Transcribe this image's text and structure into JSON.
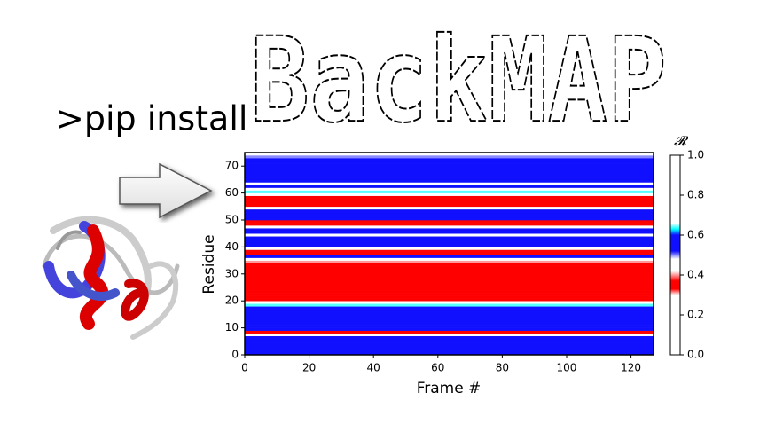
{
  "header": {
    "command": ">pip install",
    "logo": "BackMAP"
  },
  "chart_data": {
    "type": "heatmap",
    "xlabel": "Frame #",
    "ylabel": "Residue",
    "colorbar_label": "𝓡",
    "xlim": [
      0,
      127
    ],
    "xticks": [
      0,
      20,
      40,
      60,
      80,
      100,
      120
    ],
    "ylim": [
      0,
      75
    ],
    "yticks": [
      0,
      10,
      20,
      30,
      40,
      50,
      60,
      70
    ],
    "clim": [
      0,
      1
    ],
    "cticks": [
      {
        "value": 0,
        "label": "0.0"
      },
      {
        "value": 0.2,
        "label": "0.2"
      },
      {
        "value": 0.4,
        "label": "0.4"
      },
      {
        "value": 0.6,
        "label": "0.6"
      },
      {
        "value": 0.8,
        "label": "0.8"
      },
      {
        "value": 1,
        "label": "1.0"
      }
    ],
    "colormap": [
      [
        0,
        "#ffffff"
      ],
      [
        0.3,
        "#ffffff"
      ],
      [
        0.33,
        "#ff0000"
      ],
      [
        0.37,
        "#ff0000"
      ],
      [
        0.42,
        "#ffffff"
      ],
      [
        0.48,
        "#ffffff"
      ],
      [
        0.52,
        "#1010ff"
      ],
      [
        0.6,
        "#1010ff"
      ],
      [
        0.63,
        "#00ffff"
      ],
      [
        0.66,
        "#ffffff"
      ],
      [
        1,
        "#ffffff"
      ]
    ],
    "z": [
      0.55,
      0.57,
      0.57,
      0.55,
      0.57,
      0.56,
      0.55,
      0.45,
      0.35,
      0.55,
      0.57,
      0.57,
      0.56,
      0.57,
      0.57,
      0.56,
      0.57,
      0.55,
      0.64,
      0.45,
      0.36,
      0.35,
      0.34,
      0.35,
      0.35,
      0.36,
      0.35,
      0.34,
      0.35,
      0.35,
      0.36,
      0.35,
      0.35,
      0.36,
      0.4,
      0.45,
      0.56,
      0.36,
      0.35,
      0.45,
      0.57,
      0.57,
      0.56,
      0.57,
      0.45,
      0.55,
      0.57,
      0.45,
      0.35,
      0.36,
      0.56,
      0.57,
      0.57,
      0.55,
      0.45,
      0.35,
      0.35,
      0.36,
      0.35,
      0.45,
      0.64,
      0.47,
      0.57,
      0.45,
      0.57,
      0.57,
      0.56,
      0.57,
      0.57,
      0.56,
      0.57,
      0.55,
      0.57,
      0.5,
      0.47
    ]
  }
}
